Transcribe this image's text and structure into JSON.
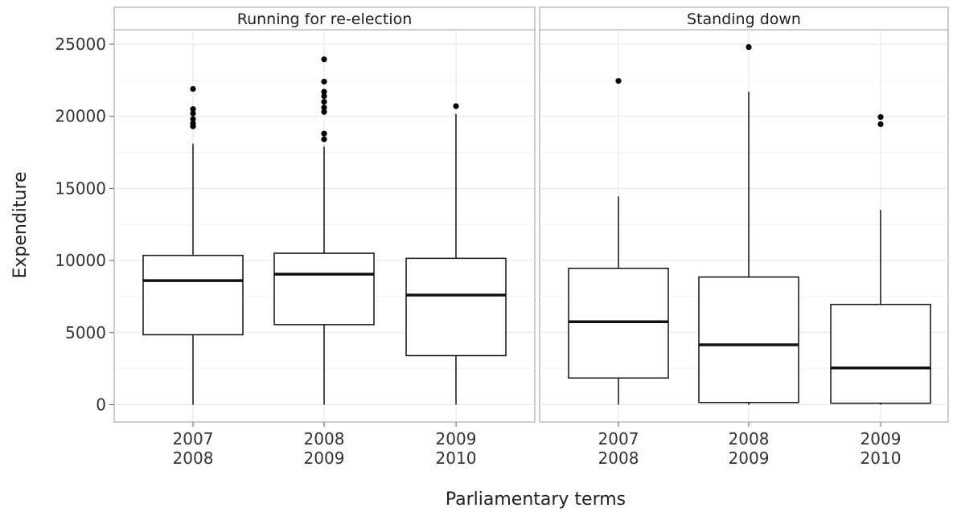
{
  "chart_data": {
    "type": "box",
    "xlabel": "Parliamentary terms",
    "ylabel": "Expenditure",
    "ylim": [
      -1200,
      26000
    ],
    "y_ticks": [
      "0",
      "5000",
      "10000",
      "15000",
      "20000",
      "25000"
    ],
    "grid": true,
    "categories": [
      [
        "2007",
        "2008"
      ],
      [
        "2008",
        "2009"
      ],
      [
        "2009",
        "2010"
      ]
    ],
    "panels": [
      {
        "title": "Running for re-election",
        "boxes": [
          {
            "min": 0,
            "q1": 4850,
            "median": 8600,
            "q3": 10350,
            "max": 18100,
            "outliers": [
              19300,
              19500,
              19800,
              20200,
              20500,
              21900
            ]
          },
          {
            "min": 0,
            "q1": 5550,
            "median": 9050,
            "q3": 10500,
            "max": 17900,
            "outliers": [
              18400,
              18800,
              20300,
              20600,
              21000,
              21400,
              21700,
              22400,
              23950
            ]
          },
          {
            "min": 0,
            "q1": 3400,
            "median": 7600,
            "q3": 10150,
            "max": 20150,
            "outliers": [
              20700
            ]
          }
        ]
      },
      {
        "title": "Standing down",
        "boxes": [
          {
            "min": 0,
            "q1": 1850,
            "median": 5750,
            "q3": 9450,
            "max": 14450,
            "outliers": [
              22450
            ]
          },
          {
            "min": 0,
            "q1": 150,
            "median": 4150,
            "q3": 8850,
            "max": 21700,
            "outliers": [
              24800
            ]
          },
          {
            "min": 0,
            "q1": 100,
            "median": 2550,
            "q3": 6950,
            "max": 13500,
            "outliers": [
              19450,
              19950
            ]
          }
        ]
      }
    ]
  }
}
